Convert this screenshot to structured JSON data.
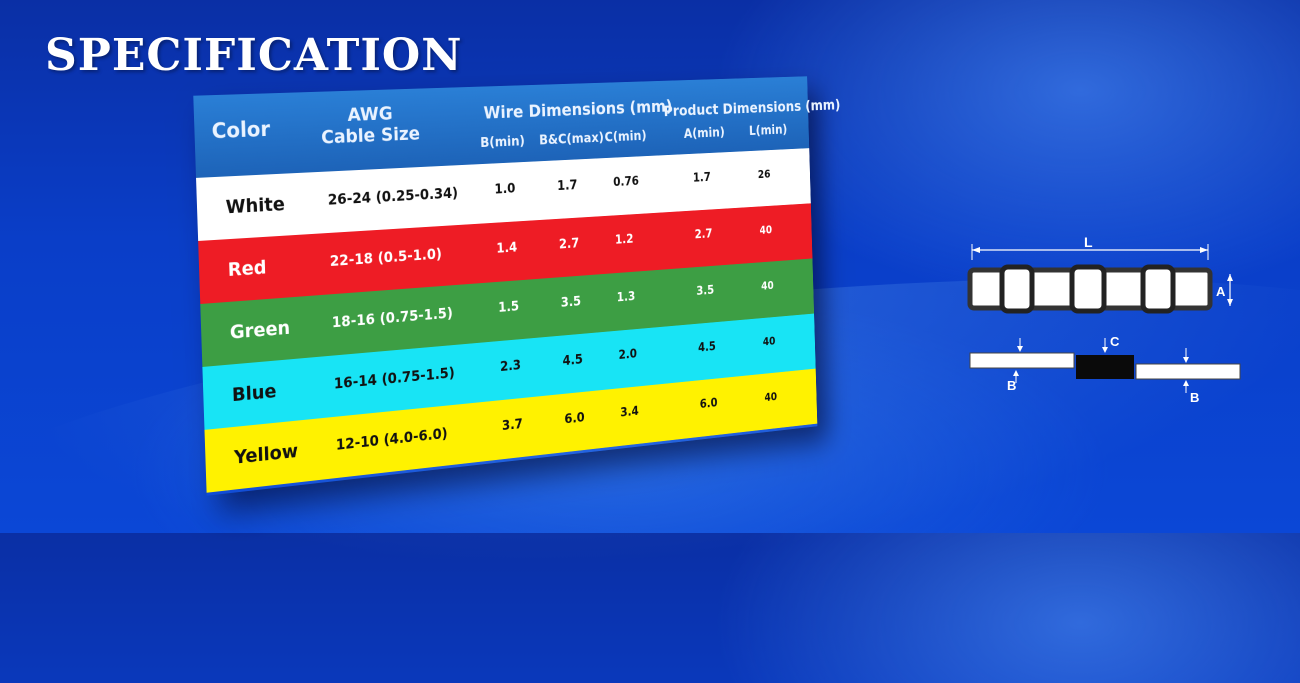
{
  "title": "SPECIFICATION",
  "table": {
    "headers": {
      "color": "Color",
      "awg_line1": "AWG",
      "awg_line2": "Cable Size",
      "wire_group": "Wire Dimensions (mm)",
      "product_group": "Product Dimensions (mm)",
      "b_min": "B(min)",
      "bc_max": "B&C(max)",
      "c_min": "C(min)",
      "a_min": "A(min)",
      "l_min": "L(min)"
    },
    "rows": [
      {
        "color": "White",
        "awg": "26-24 (0.25-0.34)",
        "b_min": "1.0",
        "bc_max": "1.7",
        "c_min": "0.76",
        "a_min": "1.7",
        "l_min": "26",
        "bg": "#ffffff",
        "fg": "#111111"
      },
      {
        "color": "Red",
        "awg": "22-18 (0.5-1.0)",
        "b_min": "1.4",
        "bc_max": "2.7",
        "c_min": "1.2",
        "a_min": "2.7",
        "l_min": "40",
        "bg": "#ee1c25",
        "fg": "#ffffff"
      },
      {
        "color": "Green",
        "awg": "18-16 (0.75-1.5)",
        "b_min": "1.5",
        "bc_max": "3.5",
        "c_min": "1.3",
        "a_min": "3.5",
        "l_min": "40",
        "bg": "#3d9e44",
        "fg": "#ffffff"
      },
      {
        "color": "Blue",
        "awg": "16-14 (0.75-1.5)",
        "b_min": "2.3",
        "bc_max": "4.5",
        "c_min": "2.0",
        "a_min": "4.5",
        "l_min": "40",
        "bg": "#18e4f5",
        "fg": "#111111"
      },
      {
        "color": "Yellow",
        "awg": "12-10 (4.0-6.0)",
        "b_min": "3.7",
        "bc_max": "6.0",
        "c_min": "3.4",
        "a_min": "6.0",
        "l_min": "40",
        "bg": "#fff200",
        "fg": "#111111"
      }
    ]
  },
  "diagram": {
    "label_l": "L",
    "label_a": "A",
    "label_b": "B",
    "label_c": "C"
  }
}
